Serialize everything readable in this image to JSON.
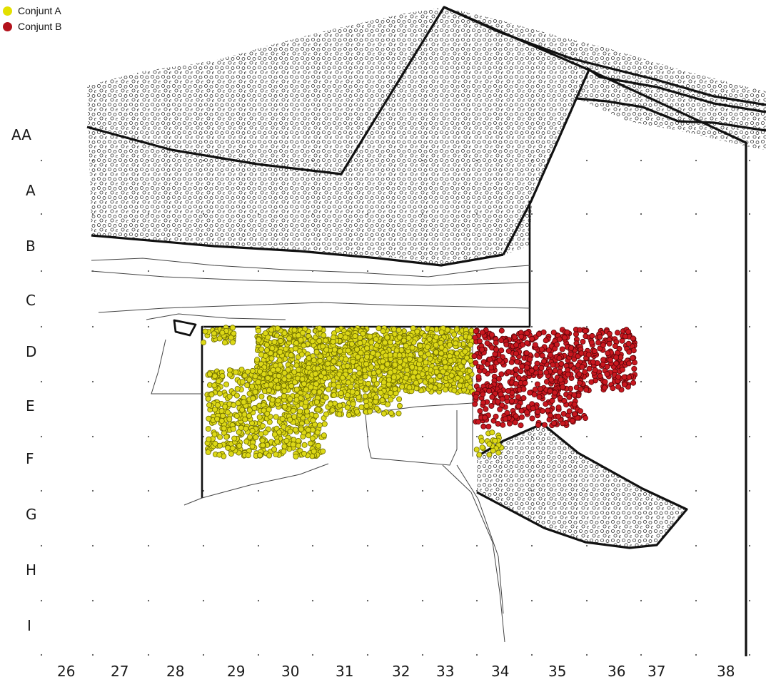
{
  "legend": {
    "items": [
      {
        "label": "Conjunt A",
        "color": "#e3e000"
      },
      {
        "label": "Conjunt B",
        "color": "#b3121c"
      }
    ]
  },
  "grid": {
    "rows": [
      "AA",
      "A",
      "B",
      "C",
      "D",
      "E",
      "F",
      "G",
      "H",
      "I"
    ],
    "columns": [
      "26",
      "27",
      "28",
      "29",
      "30",
      "31",
      "32",
      "33",
      "34",
      "35",
      "36",
      "37",
      "38"
    ]
  },
  "colors": {
    "set_a_fill": "#dcd816",
    "set_a_stroke": "#6b6a00",
    "set_b_fill": "#c8171f",
    "set_b_stroke": "#5a0508",
    "outline": "#111111"
  }
}
